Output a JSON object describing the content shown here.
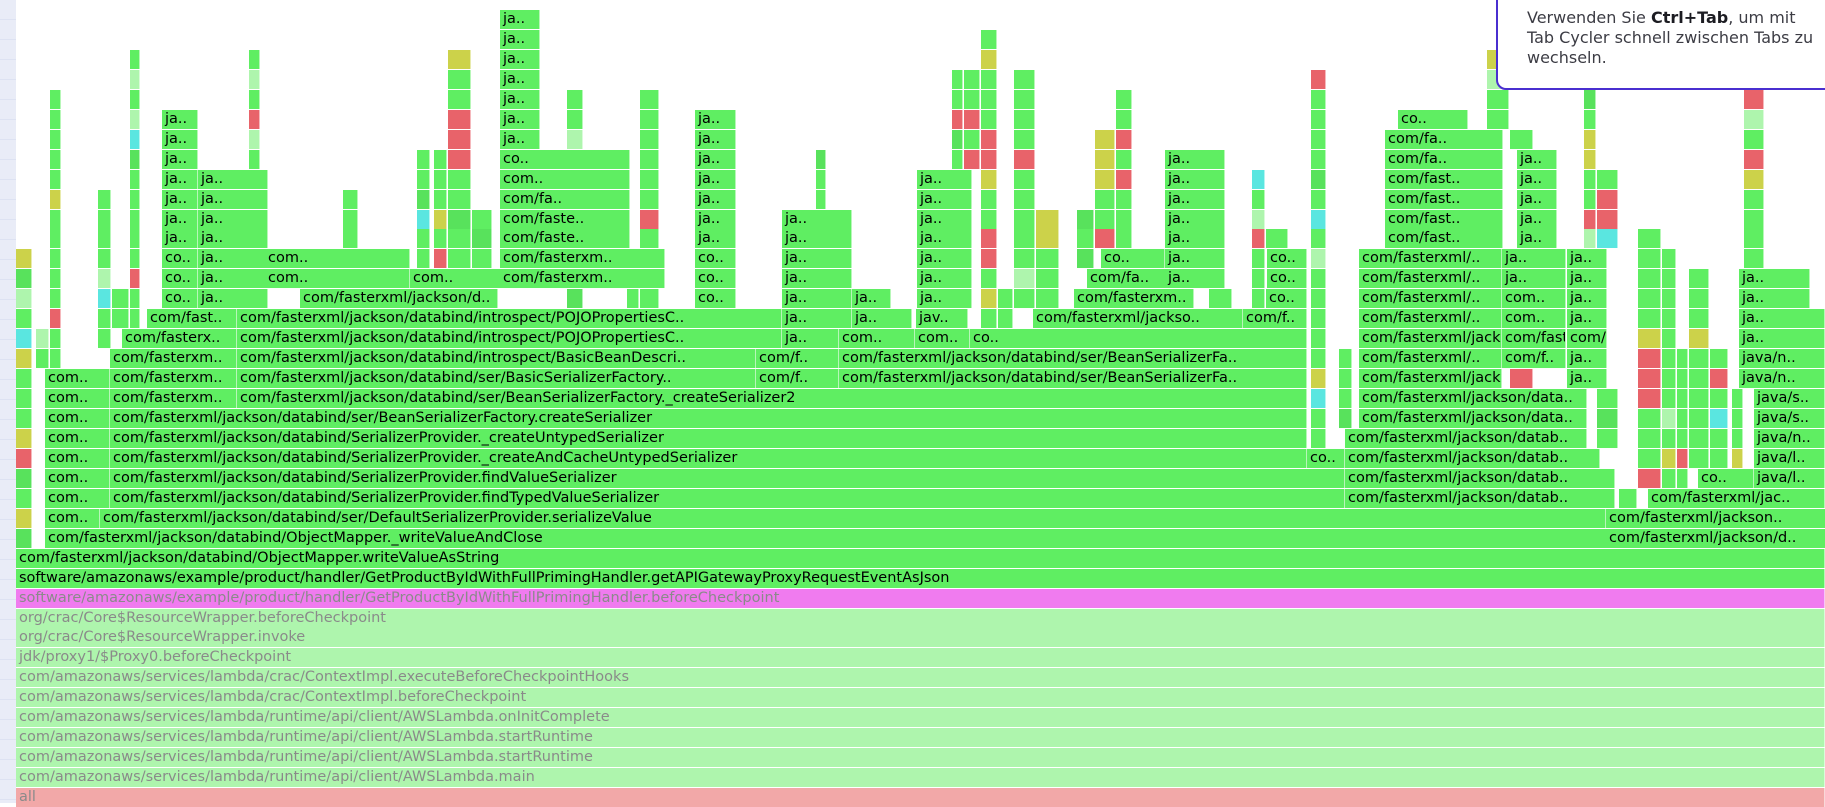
{
  "chart_data": {
    "type": "flame-graph",
    "colors": {
      "green": "#5fee62",
      "green_dark": "#58e25c",
      "red": "#e8636a",
      "yellow": "#ccd24a",
      "magenta": "#f07bef",
      "pale_green": "#aef5ad",
      "cyan": "#5ae6e0",
      "pink_root": "#f2a8a8"
    },
    "bottom_stack": [
      {
        "label": "all",
        "color": "pink_root",
        "dim": true
      },
      {
        "label": "com/amazonaws/services/lambda/runtime/api/client/AWSLambda.main",
        "color": "pale_green",
        "dim": true
      },
      {
        "label": "com/amazonaws/services/lambda/runtime/api/client/AWSLambda.startRuntime",
        "color": "pale_green",
        "dim": true
      },
      {
        "label": "com/amazonaws/services/lambda/runtime/api/client/AWSLambda.startRuntime",
        "color": "pale_green",
        "dim": true
      },
      {
        "label": "com/amazonaws/services/lambda/runtime/api/client/AWSLambda.onInitComplete",
        "color": "pale_green",
        "dim": true
      },
      {
        "label": "com/amazonaws/services/lambda/crac/ContextImpl.beforeCheckpoint",
        "color": "pale_green",
        "dim": true
      },
      {
        "label": "com/amazonaws/services/lambda/crac/ContextImpl.executeBeforeCheckpointHooks",
        "color": "pale_green",
        "dim": true
      },
      {
        "label": "jdk/proxy1/$Proxy0.beforeCheckpoint",
        "color": "pale_green",
        "dim": true
      },
      {
        "label": "org/crac/Core$ResourceWrapper.invoke",
        "color": "pale_green",
        "dim": true
      },
      {
        "label": "org/crac/Core$ResourceWrapper.beforeCheckpoint",
        "color": "pale_green",
        "dim": true
      },
      {
        "label": "software/amazonaws/example/product/handler/GetProductByIdWithFullPrimingHandler.beforeCheckpoint",
        "color": "magenta",
        "dim": true
      },
      {
        "label": "software/amazonaws/example/product/handler/GetProductByIdWithFullPrimingHandler.getAPIGatewayProxyRequestEventAsJson",
        "color": "green",
        "dim": false
      },
      {
        "label": "com/fasterxml/jackson/databind/ObjectMapper.writeValueAsString",
        "color": "green",
        "dim": false
      }
    ],
    "labeled_frames": [
      {
        "label": "com/fasterxml/jackson/databind/ObjectMapper._writeValueAndClose",
        "row": 13
      },
      {
        "label": "com/fasterxml/jackson/d..",
        "row": 13
      },
      {
        "label": "com..",
        "row": 14
      },
      {
        "label": "com/fasterxml/jackson/databind/ser/DefaultSerializerProvider.serializeValue",
        "row": 14
      },
      {
        "label": "com/fasterxml/jackson..",
        "row": 14
      },
      {
        "label": "com..",
        "row": 15
      },
      {
        "label": "com/fasterxml/jackson/databind/SerializerProvider.findTypedValueSerializer",
        "row": 15
      },
      {
        "label": "com/fasterxml/jackson/datab..",
        "row": 15
      },
      {
        "label": "com/fasterxml/jac..",
        "row": 15
      },
      {
        "label": "com..",
        "row": 16
      },
      {
        "label": "com/fasterxml/jackson/databind/SerializerProvider.findValueSerializer",
        "row": 16
      },
      {
        "label": "com/fasterxml/jackson/datab..",
        "row": 16
      },
      {
        "label": "co..",
        "row": 16
      },
      {
        "label": "java/l..",
        "row": 16
      },
      {
        "label": "com..",
        "row": 17
      },
      {
        "label": "com/fasterxml/jackson/databind/SerializerProvider._createAndCacheUntypedSerializer",
        "row": 17
      },
      {
        "label": "co..",
        "row": 17
      },
      {
        "label": "com/fasterxml/jackson/datab..",
        "row": 17
      },
      {
        "label": "java/l..",
        "row": 17
      },
      {
        "label": "com..",
        "row": 18
      },
      {
        "label": "com/fasterxml/jackson/databind/SerializerProvider._createUntypedSerializer",
        "row": 18
      },
      {
        "label": "com/fasterxml/jackson/datab..",
        "row": 18
      },
      {
        "label": "java/n..",
        "row": 18
      },
      {
        "label": "com..",
        "row": 19
      },
      {
        "label": "com/fasterxml/jackson/databind/ser/BeanSerializerFactory.createSerializer",
        "row": 19
      },
      {
        "label": "com/fasterxml/jackson/data..",
        "row": 19
      },
      {
        "label": "java/s..",
        "row": 19
      },
      {
        "label": "com..",
        "row": 20
      },
      {
        "label": "com/fasterxm..",
        "row": 20
      },
      {
        "label": "com/fasterxml/jackson/databind/ser/BeanSerializerFactory._createSerializer2",
        "row": 20
      },
      {
        "label": "com/fasterxml/jackson/data..",
        "row": 20
      },
      {
        "label": "java/s..",
        "row": 20
      },
      {
        "label": "com..",
        "row": 21
      },
      {
        "label": "com/fasterxm..",
        "row": 21
      },
      {
        "label": "com/fasterxml/jackson/databind/ser/BasicSerializerFactory..",
        "row": 21
      },
      {
        "label": "com/f..",
        "row": 21
      },
      {
        "label": "com/fasterxml/jackson/databind/ser/BeanSerializerFa..",
        "row": 21
      },
      {
        "label": "com/fasterxml/jackson..",
        "row": 21
      },
      {
        "label": "ja..",
        "row": 21
      },
      {
        "label": "java/n..",
        "row": 21
      },
      {
        "label": "com/fasterxm..",
        "row": 22
      },
      {
        "label": "com/fasterxml/jackson/databind/introspect/BasicBeanDescri..",
        "row": 22
      },
      {
        "label": "com/f..",
        "row": 22
      },
      {
        "label": "com/fasterxml/jackson/databind/ser/BeanSerializerFa..",
        "row": 22
      },
      {
        "label": "com/fasterxml/..",
        "row": 22
      },
      {
        "label": "com/f..",
        "row": 22
      },
      {
        "label": "ja..",
        "row": 22
      },
      {
        "label": "java/n..",
        "row": 22
      },
      {
        "label": "com/fasterx..",
        "row": 23
      },
      {
        "label": "com/fasterxml/jackson/databind/introspect/POJOPropertiesC..",
        "row": 23
      },
      {
        "label": "ja..",
        "row": 23
      },
      {
        "label": "com..",
        "row": 23
      },
      {
        "label": "com..",
        "row": 23
      },
      {
        "label": "co..",
        "row": 23
      },
      {
        "label": "com/fasterxml/jackson/databind/s..",
        "row": 23
      },
      {
        "label": "com/fasterxml/..",
        "row": 23
      },
      {
        "label": "com/f..",
        "row": 23
      },
      {
        "label": "ja..",
        "row": 23
      },
      {
        "label": "java/..",
        "row": 23
      },
      {
        "label": "com/fast..",
        "row": 24
      },
      {
        "label": "com/fasterxml/jackson/databind/introspect/POJOPropertiesC..",
        "row": 24
      },
      {
        "label": "ja..",
        "row": 24
      },
      {
        "label": "ja..",
        "row": 24
      },
      {
        "label": "jav..",
        "row": 24
      },
      {
        "label": "com/fasterxml/jackso..",
        "row": 24
      },
      {
        "label": "com/f..",
        "row": 24
      },
      {
        "label": "com/fasterxml/..",
        "row": 24
      },
      {
        "label": "com..",
        "row": 24
      },
      {
        "label": "ja..",
        "row": 24
      },
      {
        "label": "ja..",
        "row": 24
      },
      {
        "label": "co..",
        "row": 25
      },
      {
        "label": "ja..",
        "row": 25
      },
      {
        "label": "com/fasterxml/jackson/d..",
        "row": 25
      },
      {
        "label": "co..",
        "row": 25
      },
      {
        "label": "ja..",
        "row": 25
      },
      {
        "label": "ja..",
        "row": 25
      },
      {
        "label": "ja..",
        "row": 25
      },
      {
        "label": "com/fasterxm..",
        "row": 25
      },
      {
        "label": "co..",
        "row": 25
      },
      {
        "label": "com/fasterxml/..",
        "row": 25
      },
      {
        "label": "com..",
        "row": 25
      },
      {
        "label": "ja..",
        "row": 25
      },
      {
        "label": "ja..",
        "row": 25
      },
      {
        "label": "co..",
        "row": 26
      },
      {
        "label": "ja..",
        "row": 26
      },
      {
        "label": "com..",
        "row": 26
      },
      {
        "label": "com..",
        "row": 26
      },
      {
        "label": "com/fasterxm..",
        "row": 26
      },
      {
        "label": "co..",
        "row": 26
      },
      {
        "label": "ja..",
        "row": 26
      },
      {
        "label": "ja..",
        "row": 26
      },
      {
        "label": "com/fa..",
        "row": 26
      },
      {
        "label": "ja..",
        "row": 26
      },
      {
        "label": "co..",
        "row": 26
      },
      {
        "label": "com/fasterxml/..",
        "row": 26
      },
      {
        "label": "ja..",
        "row": 26
      },
      {
        "label": "ja..",
        "row": 26
      },
      {
        "label": "ja..",
        "row": 26
      },
      {
        "label": "co..",
        "row": 27
      },
      {
        "label": "ja..",
        "row": 27
      },
      {
        "label": "com..",
        "row": 27
      },
      {
        "label": "com/fasterxm..",
        "row": 27
      },
      {
        "label": "co..",
        "row": 27
      },
      {
        "label": "ja..",
        "row": 27
      },
      {
        "label": "ja..",
        "row": 27
      },
      {
        "label": "co..",
        "row": 27
      },
      {
        "label": "ja..",
        "row": 27
      },
      {
        "label": "co..",
        "row": 27
      },
      {
        "label": "com/fasterxml/..",
        "row": 27
      },
      {
        "label": "ja..",
        "row": 27
      },
      {
        "label": "ja..",
        "row": 27
      },
      {
        "label": "ja..",
        "row": 28
      },
      {
        "label": "ja..",
        "row": 28
      },
      {
        "label": "com/faste..",
        "row": 28
      },
      {
        "label": "ja..",
        "row": 28
      },
      {
        "label": "ja..",
        "row": 28
      },
      {
        "label": "ja..",
        "row": 28
      },
      {
        "label": "ja..",
        "row": 28
      },
      {
        "label": "com/fast..",
        "row": 28
      },
      {
        "label": "ja..",
        "row": 28
      },
      {
        "label": "ja..",
        "row": 29
      },
      {
        "label": "ja..",
        "row": 29
      },
      {
        "label": "com/faste..",
        "row": 29
      },
      {
        "label": "ja..",
        "row": 29
      },
      {
        "label": "ja..",
        "row": 29
      },
      {
        "label": "ja..",
        "row": 29
      },
      {
        "label": "ja..",
        "row": 29
      },
      {
        "label": "com/fast..",
        "row": 29
      },
      {
        "label": "ja..",
        "row": 29
      },
      {
        "label": "ja..",
        "row": 30
      },
      {
        "label": "ja..",
        "row": 30
      },
      {
        "label": "com/fa..",
        "row": 30
      },
      {
        "label": "ja..",
        "row": 30
      },
      {
        "label": "ja..",
        "row": 30
      },
      {
        "label": "ja..",
        "row": 30
      },
      {
        "label": "com/fast..",
        "row": 30
      },
      {
        "label": "ja..",
        "row": 30
      },
      {
        "label": "ja..",
        "row": 31
      },
      {
        "label": "ja..",
        "row": 31
      },
      {
        "label": "com..",
        "row": 31
      },
      {
        "label": "ja..",
        "row": 31
      },
      {
        "label": "ja..",
        "row": 31
      },
      {
        "label": "ja..",
        "row": 31
      },
      {
        "label": "com/fast..",
        "row": 31
      },
      {
        "label": "ja..",
        "row": 31
      },
      {
        "label": "ja..",
        "row": 32
      },
      {
        "label": "co..",
        "row": 32
      },
      {
        "label": "ja..",
        "row": 32
      },
      {
        "label": "ja..",
        "row": 32
      },
      {
        "label": "com/fa..",
        "row": 32
      },
      {
        "label": "ja..",
        "row": 32
      },
      {
        "label": "ja..",
        "row": 33
      },
      {
        "label": "ja..",
        "row": 33
      },
      {
        "label": "ja..",
        "row": 33
      },
      {
        "label": "com/fa..",
        "row": 33
      },
      {
        "label": "ja..",
        "row": 34
      },
      {
        "label": "ja..",
        "row": 34
      },
      {
        "label": "ja..",
        "row": 34
      },
      {
        "label": "co..",
        "row": 34
      },
      {
        "label": "ja..",
        "row": 35
      },
      {
        "label": "ja..",
        "row": 36
      },
      {
        "label": "ja..",
        "row": 37
      },
      {
        "label": "ja..",
        "row": 38
      },
      {
        "label": "ja..",
        "row": 39
      }
    ]
  },
  "tooltip": {
    "line1_prefix": "Verwenden Sie ",
    "line1_key": "Ctrl+Tab",
    "line1_suffix": ", um mit",
    "line2": "Tab Cycler schnell zwischen Tabs zu",
    "line3": "wechseln."
  }
}
